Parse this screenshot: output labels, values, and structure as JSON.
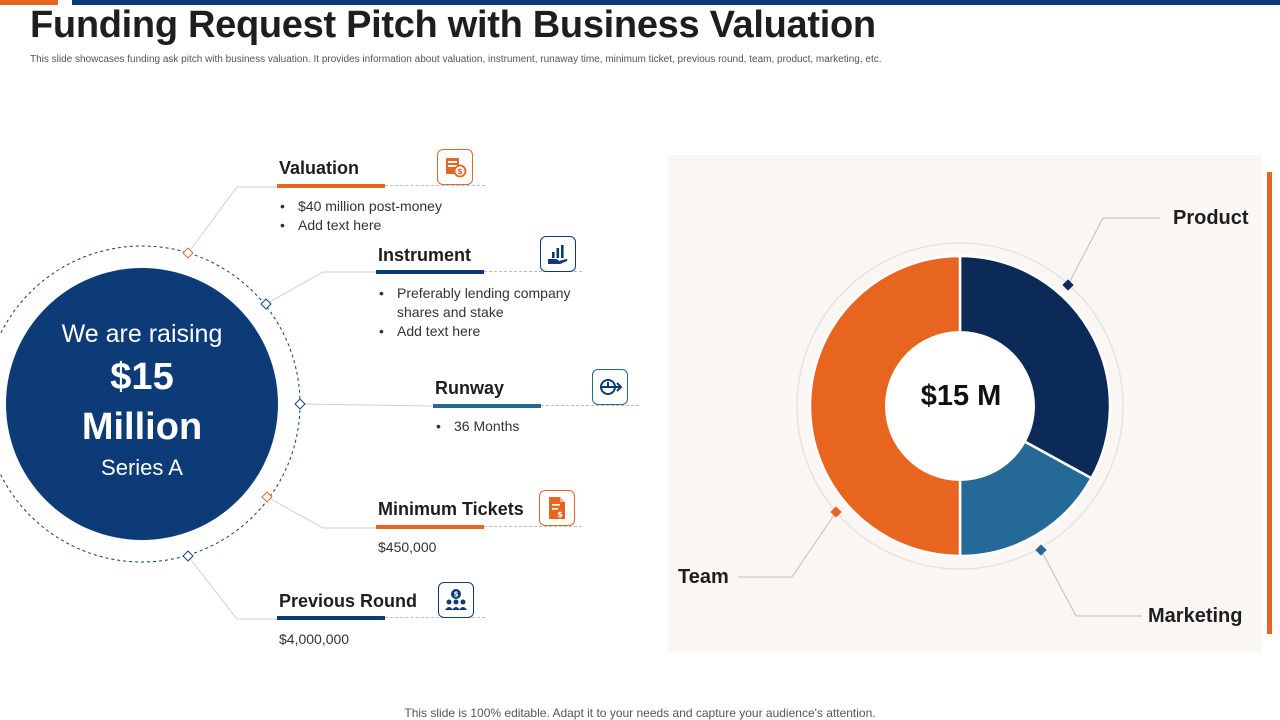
{
  "header": {
    "title": "Funding Request Pitch with Business Valuation",
    "subtitle": "This slide showcases funding ask pitch with business valuation. It provides information about valuation, instrument, runaway time, minimum ticket, previous round, team, product, marketing, etc."
  },
  "raise": {
    "line1": "We are raising",
    "amount": "$15",
    "unit": "Million",
    "series": "Series A"
  },
  "items": {
    "valuation": {
      "title": "Valuation",
      "bullets": [
        "$40 million post-money",
        "Add text here"
      ],
      "icon": "valuation-icon"
    },
    "instrument": {
      "title": "Instrument",
      "bullets": [
        "Preferably lending company shares and stake",
        "Add text here"
      ],
      "icon": "hand-chart-icon"
    },
    "runway": {
      "title": "Runway",
      "bullets": [
        "36 Months"
      ],
      "icon": "clock-arrow-icon"
    },
    "minimum_tickets": {
      "title": "Minimum Tickets",
      "value": "$450,000",
      "icon": "dollar-document-icon"
    },
    "previous_round": {
      "title": "Previous Round",
      "value": "$4,000,000",
      "icon": "team-money-icon"
    }
  },
  "colors": {
    "navy": "#0d3b78",
    "dark_navy": "#0b2a58",
    "orange": "#e8651f",
    "mid_blue": "#256996"
  },
  "chart_data": {
    "type": "pie",
    "title": "",
    "center_label": "$15 M",
    "categories": [
      "Product",
      "Marketing",
      "Team"
    ],
    "values": [
      33,
      17,
      50
    ],
    "colors": [
      "#0b2a58",
      "#256996",
      "#e8651f"
    ]
  },
  "footer": {
    "text": "This slide is 100% editable. Adapt it to your needs and capture your audience's attention."
  }
}
